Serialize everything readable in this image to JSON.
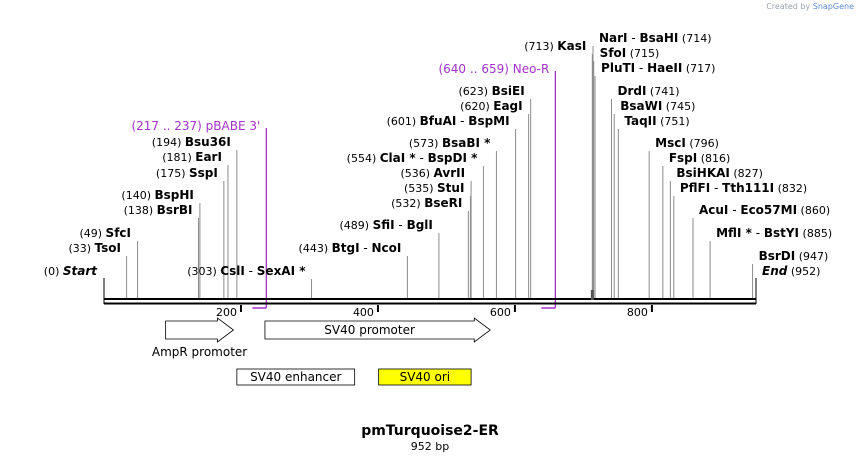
{
  "credit": {
    "prefix": "Created by",
    "brand": "SnapGene"
  },
  "plasmid": {
    "name": "pmTurquoise2-ER",
    "length_label": "952 bp",
    "length": 952
  },
  "colors": {
    "primer": "#a332c9",
    "backbone": "#000000",
    "feature_fill": "#ffffff",
    "sv40_ori_fill": "#ffff00",
    "credit_brand": "#5b8bd6"
  },
  "ruler": {
    "ticks": [
      200,
      400,
      600,
      800
    ]
  },
  "primers": [
    {
      "label": "(217 .. 237)  pBABE 3'",
      "start": 217,
      "end": 237,
      "pos": 237,
      "strand": "forward"
    },
    {
      "label": "(640 .. 659)  Neo-R",
      "start": 640,
      "end": 659,
      "pos": 659,
      "strand": "forward"
    }
  ],
  "sites": [
    {
      "parts": [
        {
          "t": "(0)",
          "s": "n"
        },
        {
          "t": "Start",
          "s": "bi"
        }
      ],
      "pos": 0
    },
    {
      "parts": [
        {
          "t": "(33)",
          "s": "n"
        },
        {
          "t": "TsoI",
          "s": "b"
        }
      ],
      "pos": 33
    },
    {
      "parts": [
        {
          "t": "(49)",
          "s": "n"
        },
        {
          "t": "SfcI",
          "s": "b"
        }
      ],
      "pos": 49
    },
    {
      "parts": [
        {
          "t": "(138)",
          "s": "n"
        },
        {
          "t": "BsrBI",
          "s": "b"
        }
      ],
      "pos": 138
    },
    {
      "parts": [
        {
          "t": "(140)",
          "s": "n"
        },
        {
          "t": "BspHI",
          "s": "b"
        }
      ],
      "pos": 140
    },
    {
      "parts": [
        {
          "t": "(175)",
          "s": "n"
        },
        {
          "t": "SspI",
          "s": "b"
        }
      ],
      "pos": 175
    },
    {
      "parts": [
        {
          "t": "(181)",
          "s": "n"
        },
        {
          "t": "EarI",
          "s": "b"
        }
      ],
      "pos": 181
    },
    {
      "parts": [
        {
          "t": "(194)",
          "s": "n"
        },
        {
          "t": "Bsu36I",
          "s": "b"
        }
      ],
      "pos": 194
    },
    {
      "parts": [
        {
          "t": "(303)",
          "s": "n"
        },
        {
          "t": "CslI",
          "s": "b"
        },
        {
          "t": " - ",
          "s": "n"
        },
        {
          "t": "SexAI *",
          "s": "b"
        }
      ],
      "pos": 303
    },
    {
      "parts": [
        {
          "t": "(443)",
          "s": "n"
        },
        {
          "t": "BtgI",
          "s": "b"
        },
        {
          "t": " - ",
          "s": "n"
        },
        {
          "t": "NcoI",
          "s": "b"
        }
      ],
      "pos": 443
    },
    {
      "parts": [
        {
          "t": "(489)",
          "s": "n"
        },
        {
          "t": "SfiI",
          "s": "b"
        },
        {
          "t": " - ",
          "s": "n"
        },
        {
          "t": "BglI",
          "s": "b"
        }
      ],
      "pos": 489
    },
    {
      "parts": [
        {
          "t": "(532)",
          "s": "n"
        },
        {
          "t": "BseRI",
          "s": "b"
        }
      ],
      "pos": 532
    },
    {
      "parts": [
        {
          "t": "(535)",
          "s": "n"
        },
        {
          "t": "StuI",
          "s": "b"
        }
      ],
      "pos": 535
    },
    {
      "parts": [
        {
          "t": "(536)",
          "s": "n"
        },
        {
          "t": "AvrII",
          "s": "b"
        }
      ],
      "pos": 536
    },
    {
      "parts": [
        {
          "t": "(554)",
          "s": "n"
        },
        {
          "t": "ClaI *",
          "s": "b"
        },
        {
          "t": " - ",
          "s": "n"
        },
        {
          "t": "BspDI *",
          "s": "b"
        }
      ],
      "pos": 554
    },
    {
      "parts": [
        {
          "t": "(573)",
          "s": "n"
        },
        {
          "t": "BsaBI *",
          "s": "b"
        }
      ],
      "pos": 573
    },
    {
      "parts": [
        {
          "t": "(601)",
          "s": "n"
        },
        {
          "t": "BfuAI",
          "s": "b"
        },
        {
          "t": " - ",
          "s": "n"
        },
        {
          "t": "BspMI",
          "s": "b"
        }
      ],
      "pos": 601
    },
    {
      "parts": [
        {
          "t": "(620)",
          "s": "n"
        },
        {
          "t": "EagI",
          "s": "b"
        }
      ],
      "pos": 620
    },
    {
      "parts": [
        {
          "t": "(623)",
          "s": "n"
        },
        {
          "t": "BsiEI",
          "s": "b"
        }
      ],
      "pos": 623
    },
    {
      "parts": [
        {
          "t": "(713)",
          "s": "n"
        },
        {
          "t": "KasI",
          "s": "b"
        }
      ],
      "pos": 713
    },
    {
      "parts": [
        {
          "t": "NarI",
          "s": "b"
        },
        {
          "t": " - ",
          "s": "n"
        },
        {
          "t": "BsaHI",
          "s": "b"
        },
        {
          "t": "(714)",
          "s": "n"
        }
      ],
      "pos": 714
    },
    {
      "parts": [
        {
          "t": "SfoI",
          "s": "b"
        },
        {
          "t": "(715)",
          "s": "n"
        }
      ],
      "pos": 715
    },
    {
      "parts": [
        {
          "t": "PluTI",
          "s": "b"
        },
        {
          "t": " - ",
          "s": "n"
        },
        {
          "t": "HaeII",
          "s": "b"
        },
        {
          "t": "(717)",
          "s": "n"
        }
      ],
      "pos": 717
    },
    {
      "parts": [
        {
          "t": "DrdI",
          "s": "b"
        },
        {
          "t": "(741)",
          "s": "n"
        }
      ],
      "pos": 741
    },
    {
      "parts": [
        {
          "t": "BsaWI",
          "s": "b"
        },
        {
          "t": "(745)",
          "s": "n"
        }
      ],
      "pos": 745
    },
    {
      "parts": [
        {
          "t": "TaqII",
          "s": "b"
        },
        {
          "t": "(751)",
          "s": "n"
        }
      ],
      "pos": 751
    },
    {
      "parts": [
        {
          "t": "MscI",
          "s": "b"
        },
        {
          "t": "(796)",
          "s": "n"
        }
      ],
      "pos": 796
    },
    {
      "parts": [
        {
          "t": "FspI",
          "s": "b"
        },
        {
          "t": "(816)",
          "s": "n"
        }
      ],
      "pos": 816
    },
    {
      "parts": [
        {
          "t": "BsiHKAI",
          "s": "b"
        },
        {
          "t": "(827)",
          "s": "n"
        }
      ],
      "pos": 827
    },
    {
      "parts": [
        {
          "t": "PflFI",
          "s": "b"
        },
        {
          "t": " - ",
          "s": "n"
        },
        {
          "t": "Tth111I",
          "s": "b"
        },
        {
          "t": "(832)",
          "s": "n"
        }
      ],
      "pos": 832
    },
    {
      "parts": [
        {
          "t": "AcuI",
          "s": "b"
        },
        {
          "t": " - ",
          "s": "n"
        },
        {
          "t": "Eco57MI",
          "s": "b"
        },
        {
          "t": "(860)",
          "s": "n"
        }
      ],
      "pos": 860
    },
    {
      "parts": [
        {
          "t": "MflI *",
          "s": "b"
        },
        {
          "t": " - ",
          "s": "n"
        },
        {
          "t": "BstYI",
          "s": "b"
        },
        {
          "t": "(885)",
          "s": "n"
        }
      ],
      "pos": 885
    },
    {
      "parts": [
        {
          "t": "BsrDI",
          "s": "b"
        },
        {
          "t": "(947)",
          "s": "n"
        }
      ],
      "pos": 947
    },
    {
      "parts": [
        {
          "t": "End",
          "s": "bi"
        },
        {
          "t": "(952)",
          "s": "n"
        }
      ],
      "pos": 952
    }
  ],
  "features": [
    {
      "label": "AmpR promoter",
      "start": 90,
      "end": 189,
      "type": "arrow",
      "fill": "#ffffff"
    },
    {
      "label": "SV40 promoter",
      "start": 235,
      "end": 564,
      "type": "arrow",
      "fill": "#ffffff"
    },
    {
      "label": "SV40 enhancer",
      "start": 194,
      "end": 366,
      "type": "box",
      "fill": "#ffffff"
    },
    {
      "label": "SV40 ori",
      "start": 401,
      "end": 536,
      "type": "box",
      "fill": "#ffff00"
    }
  ]
}
